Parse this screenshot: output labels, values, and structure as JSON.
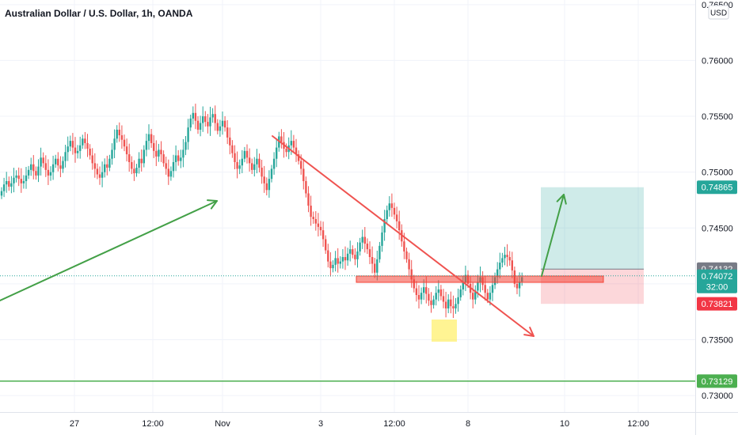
{
  "chart_data": {
    "type": "candlestick",
    "title": "Australian Dollar / U.S. Dollar, 1h, OANDA",
    "currency": "USD",
    "y_ticks": [
      "0.76500",
      "0.76000",
      "0.75500",
      "0.75000",
      "0.74500",
      "0.74000",
      "0.73500",
      "0.73000"
    ],
    "x_ticks": [
      "27",
      "12:00",
      "Nov",
      "3",
      "12:00",
      "8",
      "10",
      "12:00"
    ],
    "ylim": [
      0.7293,
      0.7652
    ],
    "grid": true,
    "up_color": "#26a69a",
    "down_color": "#ef5350",
    "candles_per_day": 24,
    "close_series": [
      0.7483,
      0.7489,
      0.7492,
      0.7487,
      0.749,
      0.7495,
      0.7497,
      0.7494,
      0.749,
      0.7492,
      0.7497,
      0.7502,
      0.7507,
      0.7501,
      0.7497,
      0.7505,
      0.7513,
      0.7508,
      0.7502,
      0.7497,
      0.75,
      0.7507,
      0.7512,
      0.7506,
      0.7503,
      0.751,
      0.7518,
      0.7523,
      0.7528,
      0.7522,
      0.7517,
      0.7519,
      0.7524,
      0.753,
      0.7526,
      0.7521,
      0.7515,
      0.7508,
      0.7503,
      0.7498,
      0.7495,
      0.75,
      0.7507,
      0.7504,
      0.7512,
      0.752,
      0.753,
      0.7538,
      0.7533,
      0.7529,
      0.7523,
      0.7516,
      0.7509,
      0.7503,
      0.7499,
      0.7504,
      0.7512,
      0.7508,
      0.752,
      0.7528,
      0.7534,
      0.7526,
      0.7519,
      0.7514,
      0.752,
      0.7516,
      0.7508,
      0.7503,
      0.7496,
      0.7501,
      0.7509,
      0.7515,
      0.751,
      0.7513,
      0.752,
      0.7527,
      0.754,
      0.7548,
      0.7553,
      0.7546,
      0.7538,
      0.7544,
      0.755,
      0.7545,
      0.7541,
      0.7549,
      0.7552,
      0.7544,
      0.7537,
      0.7541,
      0.7546,
      0.754,
      0.7531,
      0.7524,
      0.7517,
      0.7509,
      0.7503,
      0.7506,
      0.7512,
      0.7519,
      0.7513,
      0.7508,
      0.7502,
      0.7507,
      0.7512,
      0.7504,
      0.7496,
      0.749,
      0.7484,
      0.7494,
      0.7503,
      0.7512,
      0.7522,
      0.7532,
      0.7527,
      0.7521,
      0.7518,
      0.7524,
      0.7528,
      0.7522,
      0.7516,
      0.751,
      0.7503,
      0.7492,
      0.7481,
      0.747,
      0.746,
      0.7458,
      0.7454,
      0.7451,
      0.7448,
      0.744,
      0.743,
      0.742,
      0.7414,
      0.7417,
      0.7423,
      0.7418,
      0.742,
      0.7424,
      0.7421,
      0.7427,
      0.7431,
      0.7426,
      0.7422,
      0.7429,
      0.7437,
      0.7442,
      0.7436,
      0.7431,
      0.7424,
      0.7418,
      0.741,
      0.7422,
      0.7434,
      0.7446,
      0.7458,
      0.7466,
      0.7472,
      0.7468,
      0.7462,
      0.7456,
      0.7448,
      0.7438,
      0.7429,
      0.7422,
      0.7413,
      0.7404,
      0.7396,
      0.739,
      0.7386,
      0.7392,
      0.7397,
      0.7391,
      0.7385,
      0.7381,
      0.7386,
      0.7392,
      0.7395,
      0.7389,
      0.7384,
      0.7378,
      0.7386,
      0.738,
      0.7378,
      0.7382,
      0.7388,
      0.7395,
      0.7401,
      0.7408,
      0.74,
      0.7392,
      0.7386,
      0.7394,
      0.7401,
      0.7406,
      0.7399,
      0.7392,
      0.7386,
      0.7392,
      0.7399,
      0.7406,
      0.7413,
      0.7419,
      0.7423,
      0.7426,
      0.7424,
      0.7421,
      0.7412,
      0.74,
      0.7396,
      0.7402,
      0.7406
    ],
    "horizontal_lines": [
      {
        "price": 0.73129,
        "label": "0.73129",
        "color": "#4caf50"
      }
    ],
    "price_badges": [
      {
        "price": 0.74865,
        "label": "0.74865",
        "color": "#26a69a"
      },
      {
        "price": 0.74132,
        "label": "0.74132",
        "color": "#787b86"
      },
      {
        "price": 0.74072,
        "label": "0.74072",
        "sublabel": "32:00",
        "color": "#26a69a"
      },
      {
        "price": 0.73821,
        "label": "0.73821",
        "color": "#f23645"
      }
    ],
    "position": {
      "entry": 0.74132,
      "target": 0.74865,
      "stop": 0.73821
    }
  }
}
